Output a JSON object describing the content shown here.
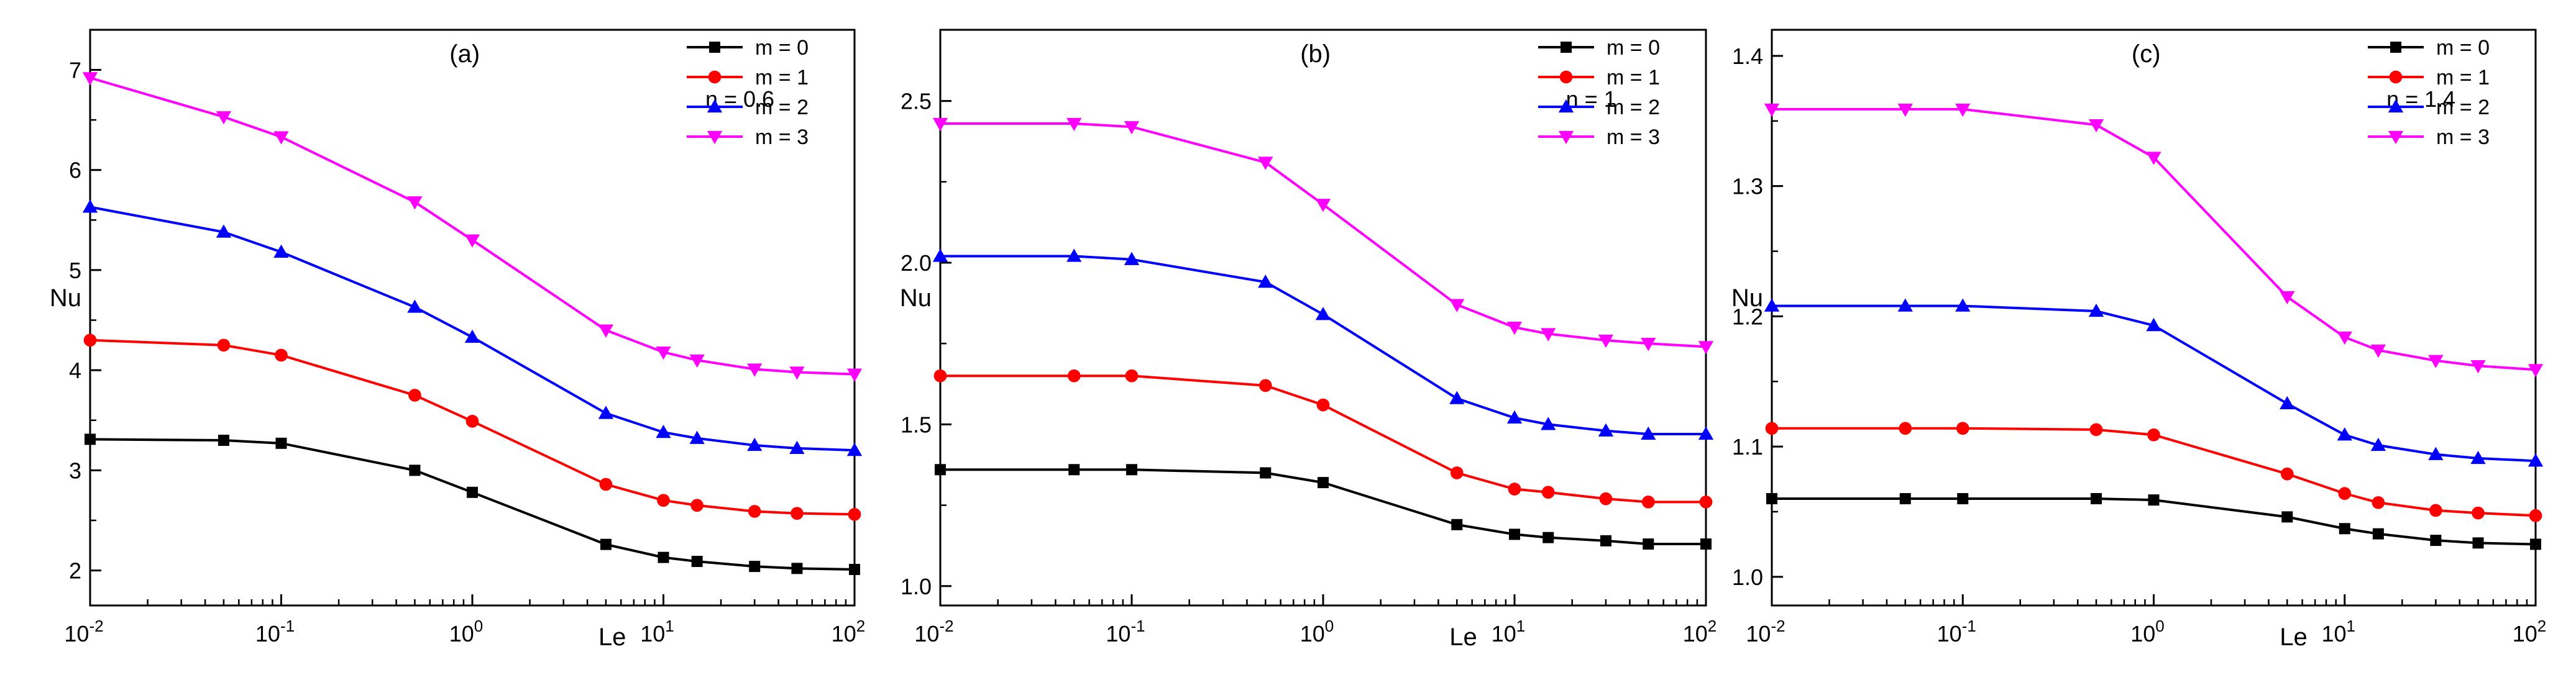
{
  "chart_data": [
    {
      "type": "line",
      "panel_label": "(a)",
      "annotation": "n = 0.6",
      "xlabel": "Le",
      "ylabel": "Nu",
      "xscale": "log",
      "xlim": [
        0.01,
        100
      ],
      "ylim": [
        1.65,
        7.4
      ],
      "xticks": [
        0.01,
        0.1,
        1,
        10,
        100
      ],
      "xtick_labels": [
        [
          "10",
          "-2"
        ],
        [
          "10",
          "-1"
        ],
        [
          "10",
          "0"
        ],
        [
          "10",
          "1"
        ],
        [
          "10",
          "2"
        ]
      ],
      "yticks": [
        2,
        3,
        4,
        5,
        6,
        7
      ],
      "ytick_labels": [
        "2",
        "3",
        "4",
        "5",
        "6",
        "7"
      ],
      "x": [
        0.01,
        0.05,
        0.1,
        0.5,
        1,
        5,
        10,
        15,
        30,
        50,
        100
      ],
      "series": [
        {
          "name": "m = 0",
          "color": "#000000",
          "marker": "square",
          "values": [
            3.31,
            3.3,
            3.27,
            3.0,
            2.78,
            2.26,
            2.13,
            2.09,
            2.04,
            2.02,
            2.01
          ]
        },
        {
          "name": "m = 1",
          "color": "#ff0000",
          "marker": "circle",
          "values": [
            4.3,
            4.25,
            4.15,
            3.75,
            3.49,
            2.86,
            2.7,
            2.65,
            2.59,
            2.57,
            2.56
          ]
        },
        {
          "name": "m = 2",
          "color": "#0000ff",
          "marker": "triangle-up",
          "values": [
            5.63,
            5.38,
            5.18,
            4.63,
            4.33,
            3.57,
            3.38,
            3.32,
            3.25,
            3.22,
            3.2
          ]
        },
        {
          "name": "m = 3",
          "color": "#ff00ff",
          "marker": "triangle-down",
          "values": [
            6.92,
            6.53,
            6.33,
            5.68,
            5.3,
            4.4,
            4.18,
            4.1,
            4.01,
            3.98,
            3.96
          ]
        }
      ],
      "legend": "top-right"
    },
    {
      "type": "line",
      "panel_label": "(b)",
      "annotation": "n = 1",
      "xlabel": "Le",
      "ylabel": "Nu",
      "xscale": "log",
      "xlim": [
        0.01,
        100
      ],
      "ylim": [
        0.94,
        2.72
      ],
      "xticks": [
        0.01,
        0.1,
        1,
        10,
        100
      ],
      "xtick_labels": [
        [
          "10",
          "-2"
        ],
        [
          "10",
          "-1"
        ],
        [
          "10",
          "0"
        ],
        [
          "10",
          "1"
        ],
        [
          "10",
          "2"
        ]
      ],
      "yticks": [
        1.0,
        1.5,
        2.0,
        2.5
      ],
      "ytick_labels": [
        "1.0",
        "1.5",
        "2.0",
        "2.5"
      ],
      "x": [
        0.01,
        0.05,
        0.1,
        0.5,
        1,
        5,
        10,
        15,
        30,
        50,
        100
      ],
      "series": [
        {
          "name": "m = 0",
          "color": "#000000",
          "marker": "square",
          "values": [
            1.36,
            1.36,
            1.36,
            1.35,
            1.32,
            1.19,
            1.16,
            1.15,
            1.14,
            1.13,
            1.13
          ]
        },
        {
          "name": "m = 1",
          "color": "#ff0000",
          "marker": "circle",
          "values": [
            1.65,
            1.65,
            1.65,
            1.62,
            1.56,
            1.35,
            1.3,
            1.29,
            1.27,
            1.26,
            1.26
          ]
        },
        {
          "name": "m = 2",
          "color": "#0000ff",
          "marker": "triangle-up",
          "values": [
            2.02,
            2.02,
            2.01,
            1.94,
            1.84,
            1.58,
            1.52,
            1.5,
            1.48,
            1.47,
            1.47
          ]
        },
        {
          "name": "m = 3",
          "color": "#ff00ff",
          "marker": "triangle-down",
          "values": [
            2.43,
            2.43,
            2.42,
            2.31,
            2.18,
            1.87,
            1.8,
            1.78,
            1.76,
            1.75,
            1.74
          ]
        }
      ],
      "legend": "top-right"
    },
    {
      "type": "line",
      "panel_label": "(c)",
      "annotation": "n = 1.4",
      "xlabel": "Le",
      "ylabel": "Nu",
      "xscale": "log",
      "xlim": [
        0.01,
        100
      ],
      "ylim": [
        0.978,
        1.42
      ],
      "xticks": [
        0.01,
        0.1,
        1,
        10,
        100
      ],
      "xtick_labels": [
        [
          "10",
          "-2"
        ],
        [
          "10",
          "-1"
        ],
        [
          "10",
          "0"
        ],
        [
          "10",
          "1"
        ],
        [
          "10",
          "2"
        ]
      ],
      "yticks": [
        1.0,
        1.1,
        1.2,
        1.3,
        1.4
      ],
      "ytick_labels": [
        "1.0",
        "1.1",
        "1.2",
        "1.3",
        "1.4"
      ],
      "x": [
        0.01,
        0.05,
        0.1,
        0.5,
        1,
        5,
        10,
        15,
        30,
        50,
        100
      ],
      "series": [
        {
          "name": "m = 0",
          "color": "#000000",
          "marker": "square",
          "values": [
            1.06,
            1.06,
            1.06,
            1.06,
            1.059,
            1.046,
            1.037,
            1.033,
            1.028,
            1.026,
            1.025
          ]
        },
        {
          "name": "m = 1",
          "color": "#ff0000",
          "marker": "circle",
          "values": [
            1.114,
            1.114,
            1.114,
            1.113,
            1.109,
            1.079,
            1.064,
            1.057,
            1.051,
            1.049,
            1.047
          ]
        },
        {
          "name": "m = 2",
          "color": "#0000ff",
          "marker": "triangle-up",
          "values": [
            1.208,
            1.208,
            1.208,
            1.204,
            1.193,
            1.133,
            1.109,
            1.101,
            1.094,
            1.091,
            1.089
          ]
        },
        {
          "name": "m = 3",
          "color": "#ff00ff",
          "marker": "triangle-down",
          "values": [
            1.359,
            1.359,
            1.359,
            1.347,
            1.322,
            1.215,
            1.184,
            1.174,
            1.166,
            1.162,
            1.159
          ]
        }
      ],
      "legend": "top-right"
    }
  ]
}
